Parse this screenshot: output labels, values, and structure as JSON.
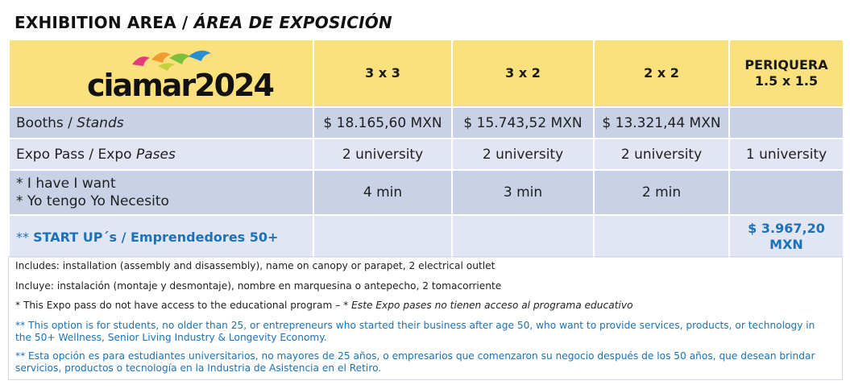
{
  "title": {
    "main": "EXHIBITION AREA / ",
    "spanish": "ÁREA DE EXPOSICIÓN"
  },
  "logo": {
    "text": "ciamar2024",
    "colors": {
      "bird1": "#e23a7a",
      "bird2": "#f29a2e",
      "bird3": "#7bbf3a",
      "bird4": "#2a8fd0"
    }
  },
  "columns": [
    "3 x 3",
    "3 x 2",
    "2 x 2",
    "PERIQUERA",
    "1.5 x 1.5"
  ],
  "rows": {
    "booths": {
      "label": "Booths / ",
      "label_es": "Stands",
      "values": [
        "$ 18.165,60 MXN",
        "$ 15.743,52 MXN",
        "$ 13.321,44 MXN",
        ""
      ]
    },
    "expo": {
      "label": "Expo Pass / Expo ",
      "label_es": "Pases",
      "values": [
        "2 university",
        "2 university",
        "2 university",
        "1 university"
      ]
    },
    "want": {
      "label_line1": "* I have I want",
      "label_line2": "* Yo tengo Yo Necesito",
      "values": [
        "4 min",
        "3 min",
        "2 min",
        ""
      ]
    },
    "startup": {
      "stars": "** ",
      "label": "START UP´s / Emprendedores 50+",
      "price_line1": "$ 3.967,20",
      "price_line2": "MXN"
    }
  },
  "notes": {
    "includes_en": "Includes: installation (assembly and disassembly), name on canopy or parapet, 2 electrical outlet",
    "includes_es": "Incluye: instalación (montaje y desmontaje), nombre en marquesina o antepecho, 2 tomacorriente",
    "expo_note_en": "* This Expo pass do not have access to the educational program – * ",
    "expo_note_es": "Este Expo pases no tienen acceso al programa educativo",
    "startup_en": "** This option is for students, no older than 25, or entrepreneurs who started their business after age 50, who want to provide services, products, or technology in the 50+ Wellness, Senior Living Industry & Longevity Economy.",
    "startup_es": "** Esta opción es para estudiantes universitarios, no mayores de 25 años, o empresarios que comenzaron su negocio después de los 50 años, que desean brindar servicios, productos o tecnología en la Industria de Asistencia en el Retiro."
  },
  "colors": {
    "header": "#fbe07e",
    "row_dark": "#c9d1e6",
    "row_light": "#e2e6f2",
    "accent_blue": "#1a73b8"
  }
}
